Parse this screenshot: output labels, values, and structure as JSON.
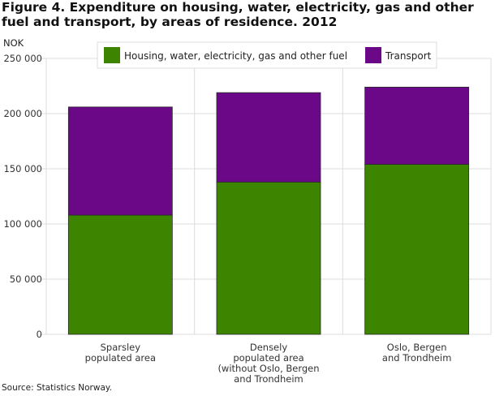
{
  "chart_data": {
    "type": "bar",
    "stacked": true,
    "title": "Figure 4. Expenditure on housing, water, electricity, gas and other fuel and transport, by areas of residence. 2012",
    "ylabel": "NOK",
    "xlabel": "",
    "ylim": [
      0,
      250000
    ],
    "yticks": [
      0,
      50000,
      100000,
      150000,
      200000,
      250000
    ],
    "ytick_labels": [
      "0",
      "50 000",
      "100 000",
      "150 000",
      "200 000",
      "250 000"
    ],
    "categories": [
      [
        "Sparsley",
        "populated area"
      ],
      [
        "Densely",
        "populated area",
        "(without Oslo, Bergen",
        "and Trondheim"
      ],
      [
        "Oslo, Bergen",
        "and Trondheim"
      ]
    ],
    "series": [
      {
        "name": "Housing, water, electricity, gas and other fuel",
        "color": "#3d8500",
        "values": [
          108000,
          138000,
          154000
        ]
      },
      {
        "name": "Transport",
        "color": "#6a0888",
        "values": [
          98000,
          81000,
          70000
        ]
      }
    ],
    "grid": true,
    "legend_position": "top-center",
    "source": "Source: Statistics Norway."
  }
}
